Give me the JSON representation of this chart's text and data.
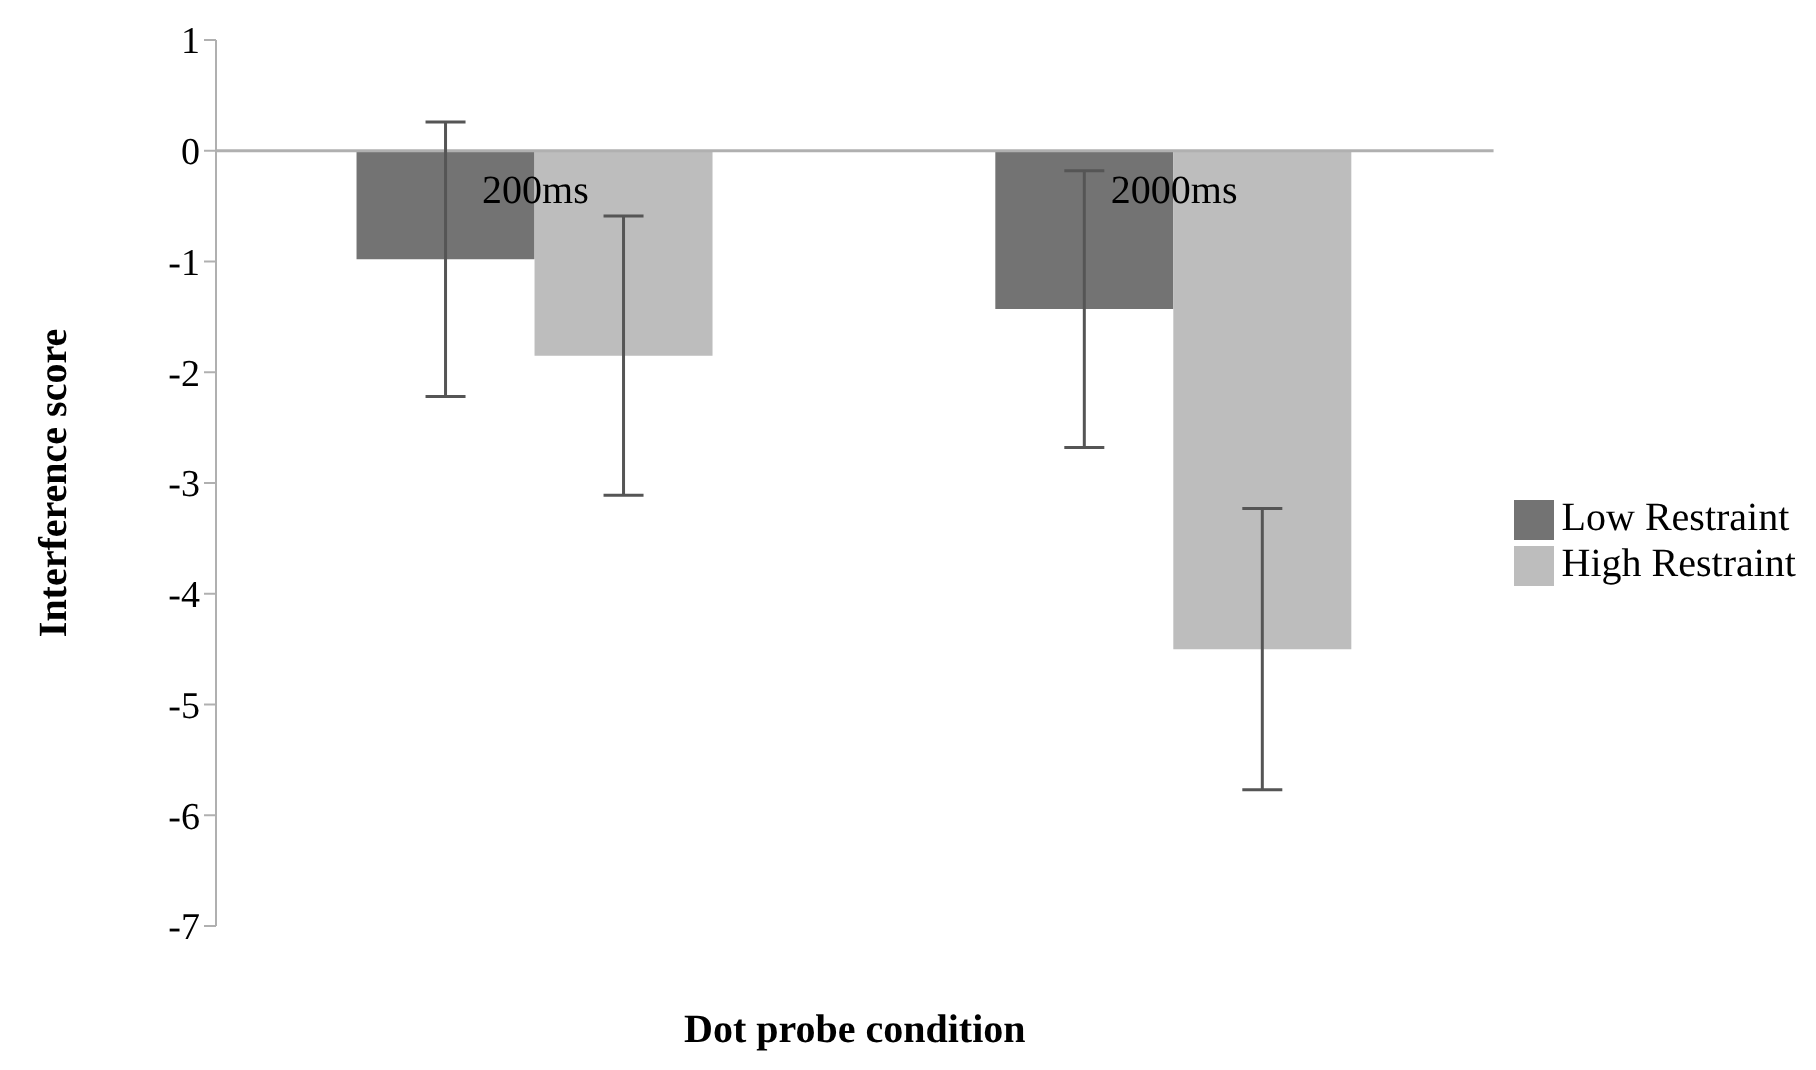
{
  "chart_data": {
    "type": "bar",
    "xlabel": "Dot probe condition",
    "ylabel": "Interference score",
    "categories": [
      "200ms",
      "2000ms"
    ],
    "series": [
      {
        "name": "Low Restraint",
        "color": "#737373",
        "values": [
          -0.98,
          -1.43
        ],
        "errors": [
          1.24,
          1.25
        ]
      },
      {
        "name": "High Restraint",
        "color": "#bdbdbd",
        "values": [
          -1.85,
          -4.5
        ],
        "errors": [
          1.26,
          1.27
        ]
      }
    ],
    "ylim": [
      -7,
      1
    ],
    "yticks": [
      -7,
      -6,
      -5,
      -4,
      -3,
      -2,
      -1,
      0,
      1
    ],
    "legend": "right"
  }
}
